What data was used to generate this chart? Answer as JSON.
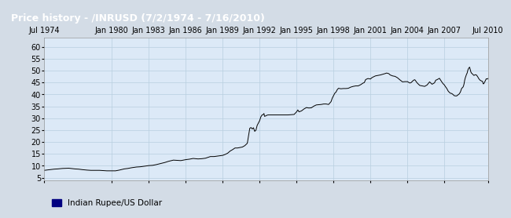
{
  "title": "Price history - /INRUSD (7/2/1974 - 7/16/2010)",
  "title_bg": "#4472b8",
  "title_color": "#ffffff",
  "ylabel_values": [
    5,
    10,
    15,
    20,
    25,
    30,
    35,
    40,
    45,
    50,
    55,
    60
  ],
  "xtick_labels": [
    "Jul 1974",
    "Jan 1980",
    "Jan 1983",
    "Jan 1986",
    "Jan 1989",
    "Jan 1992",
    "Jan 1995",
    "Jan 1998",
    "Jan 2001",
    "Jan 2004",
    "Jan 2007",
    "Jul 2010"
  ],
  "xtick_years": [
    1974.5,
    1980.0,
    1983.0,
    1986.0,
    1989.0,
    1992.0,
    1995.0,
    1998.0,
    2001.0,
    2004.0,
    2007.0,
    2010.54
  ],
  "legend_label": "Indian Rupee/US Dollar",
  "legend_color": "#000080",
  "plot_bg": "#dce9f7",
  "outer_bg": "#d3dce6",
  "line_color": "#000000",
  "grid_color": "#b8cfe0",
  "ylim": [
    4,
    64
  ],
  "xlim": [
    1974.5,
    2010.54
  ],
  "data": [
    [
      1974.5,
      8.1
    ],
    [
      1975.0,
      8.4
    ],
    [
      1975.3,
      8.6
    ],
    [
      1975.6,
      8.7
    ],
    [
      1976.0,
      8.9
    ],
    [
      1976.5,
      9.0
    ],
    [
      1977.0,
      8.7
    ],
    [
      1977.3,
      8.6
    ],
    [
      1977.6,
      8.4
    ],
    [
      1978.0,
      8.2
    ],
    [
      1978.3,
      8.1
    ],
    [
      1978.6,
      8.1
    ],
    [
      1979.0,
      8.1
    ],
    [
      1979.3,
      8.0
    ],
    [
      1979.6,
      7.9
    ],
    [
      1980.0,
      7.9
    ],
    [
      1980.3,
      7.9
    ],
    [
      1980.6,
      8.2
    ],
    [
      1981.0,
      8.7
    ],
    [
      1981.3,
      8.9
    ],
    [
      1981.6,
      9.2
    ],
    [
      1982.0,
      9.5
    ],
    [
      1982.3,
      9.6
    ],
    [
      1982.6,
      9.8
    ],
    [
      1983.0,
      10.1
    ],
    [
      1983.3,
      10.2
    ],
    [
      1983.6,
      10.5
    ],
    [
      1984.0,
      11.0
    ],
    [
      1984.3,
      11.4
    ],
    [
      1984.6,
      11.9
    ],
    [
      1985.0,
      12.4
    ],
    [
      1985.3,
      12.3
    ],
    [
      1985.6,
      12.2
    ],
    [
      1986.0,
      12.6
    ],
    [
      1986.3,
      12.8
    ],
    [
      1986.6,
      13.1
    ],
    [
      1987.0,
      12.9
    ],
    [
      1987.3,
      13.0
    ],
    [
      1987.6,
      13.2
    ],
    [
      1988.0,
      13.9
    ],
    [
      1988.3,
      13.9
    ],
    [
      1988.6,
      14.1
    ],
    [
      1989.0,
      14.4
    ],
    [
      1989.2,
      14.8
    ],
    [
      1989.4,
      15.3
    ],
    [
      1989.6,
      16.2
    ],
    [
      1989.8,
      16.8
    ],
    [
      1990.0,
      17.5
    ],
    [
      1990.2,
      17.5
    ],
    [
      1990.4,
      17.7
    ],
    [
      1990.6,
      17.9
    ],
    [
      1990.8,
      18.5
    ],
    [
      1991.0,
      19.5
    ],
    [
      1991.1,
      22.7
    ],
    [
      1991.15,
      24.5
    ],
    [
      1991.2,
      25.8
    ],
    [
      1991.3,
      26.1
    ],
    [
      1991.4,
      25.5
    ],
    [
      1991.5,
      26.0
    ],
    [
      1991.6,
      24.5
    ],
    [
      1991.7,
      25.0
    ],
    [
      1991.8,
      27.0
    ],
    [
      1991.9,
      28.0
    ],
    [
      1992.0,
      29.0
    ],
    [
      1992.1,
      30.6
    ],
    [
      1992.2,
      31.4
    ],
    [
      1992.3,
      31.6
    ],
    [
      1992.35,
      32.0
    ],
    [
      1992.4,
      30.8
    ],
    [
      1992.5,
      31.0
    ],
    [
      1992.6,
      31.3
    ],
    [
      1992.7,
      31.4
    ],
    [
      1992.8,
      31.4
    ],
    [
      1993.0,
      31.4
    ],
    [
      1993.5,
      31.4
    ],
    [
      1994.0,
      31.4
    ],
    [
      1994.3,
      31.4
    ],
    [
      1994.6,
      31.5
    ],
    [
      1994.8,
      31.6
    ],
    [
      1995.0,
      32.7
    ],
    [
      1995.1,
      33.5
    ],
    [
      1995.2,
      32.7
    ],
    [
      1995.4,
      33.1
    ],
    [
      1995.6,
      33.9
    ],
    [
      1995.8,
      34.5
    ],
    [
      1996.0,
      34.3
    ],
    [
      1996.2,
      34.4
    ],
    [
      1996.4,
      35.1
    ],
    [
      1996.6,
      35.6
    ],
    [
      1996.8,
      35.7
    ],
    [
      1997.0,
      35.8
    ],
    [
      1997.2,
      36.0
    ],
    [
      1997.4,
      36.0
    ],
    [
      1997.6,
      35.8
    ],
    [
      1997.8,
      37.0
    ],
    [
      1997.9,
      38.5
    ],
    [
      1998.0,
      39.5
    ],
    [
      1998.1,
      40.5
    ],
    [
      1998.2,
      41.0
    ],
    [
      1998.3,
      42.0
    ],
    [
      1998.4,
      42.6
    ],
    [
      1998.6,
      42.4
    ],
    [
      1998.8,
      42.5
    ],
    [
      1999.0,
      42.5
    ],
    [
      1999.2,
      42.6
    ],
    [
      1999.4,
      43.1
    ],
    [
      1999.6,
      43.4
    ],
    [
      1999.8,
      43.6
    ],
    [
      2000.0,
      43.6
    ],
    [
      2000.2,
      44.1
    ],
    [
      2000.4,
      44.8
    ],
    [
      2000.5,
      45.0
    ],
    [
      2000.6,
      46.2
    ],
    [
      2000.7,
      46.5
    ],
    [
      2000.8,
      46.7
    ],
    [
      2001.0,
      46.5
    ],
    [
      2001.1,
      47.0
    ],
    [
      2001.2,
      47.3
    ],
    [
      2001.4,
      47.8
    ],
    [
      2001.6,
      48.0
    ],
    [
      2001.8,
      48.2
    ],
    [
      2002.0,
      48.5
    ],
    [
      2002.2,
      48.8
    ],
    [
      2002.3,
      49.0
    ],
    [
      2002.4,
      48.9
    ],
    [
      2002.5,
      48.7
    ],
    [
      2002.6,
      48.2
    ],
    [
      2002.8,
      47.8
    ],
    [
      2003.0,
      47.6
    ],
    [
      2003.2,
      47.0
    ],
    [
      2003.4,
      46.1
    ],
    [
      2003.6,
      45.3
    ],
    [
      2003.8,
      45.4
    ],
    [
      2004.0,
      45.4
    ],
    [
      2004.2,
      44.8
    ],
    [
      2004.3,
      45.0
    ],
    [
      2004.4,
      45.5
    ],
    [
      2004.5,
      46.0
    ],
    [
      2004.6,
      46.2
    ],
    [
      2004.8,
      44.8
    ],
    [
      2005.0,
      43.8
    ],
    [
      2005.2,
      43.6
    ],
    [
      2005.4,
      43.4
    ],
    [
      2005.6,
      44.0
    ],
    [
      2005.8,
      45.3
    ],
    [
      2006.0,
      44.3
    ],
    [
      2006.1,
      44.6
    ],
    [
      2006.2,
      44.9
    ],
    [
      2006.3,
      46.0
    ],
    [
      2006.4,
      46.2
    ],
    [
      2006.5,
      46.5
    ],
    [
      2006.6,
      46.8
    ],
    [
      2006.7,
      46.0
    ],
    [
      2006.8,
      45.2
    ],
    [
      2006.9,
      44.5
    ],
    [
      2007.0,
      44.0
    ],
    [
      2007.1,
      43.2
    ],
    [
      2007.2,
      42.5
    ],
    [
      2007.3,
      41.5
    ],
    [
      2007.4,
      40.9
    ],
    [
      2007.5,
      40.5
    ],
    [
      2007.6,
      40.4
    ],
    [
      2007.7,
      40.0
    ],
    [
      2007.8,
      39.5
    ],
    [
      2007.9,
      39.4
    ],
    [
      2008.0,
      39.4
    ],
    [
      2008.1,
      39.8
    ],
    [
      2008.2,
      40.2
    ],
    [
      2008.3,
      41.0
    ],
    [
      2008.4,
      42.5
    ],
    [
      2008.45,
      42.8
    ],
    [
      2008.5,
      43.0
    ],
    [
      2008.55,
      43.5
    ],
    [
      2008.6,
      44.5
    ],
    [
      2008.65,
      46.0
    ],
    [
      2008.7,
      47.0
    ],
    [
      2008.75,
      47.8
    ],
    [
      2008.8,
      48.5
    ],
    [
      2008.85,
      49.0
    ],
    [
      2008.9,
      50.1
    ],
    [
      2008.95,
      50.8
    ],
    [
      2009.0,
      51.2
    ],
    [
      2009.05,
      51.5
    ],
    [
      2009.1,
      50.5
    ],
    [
      2009.15,
      49.5
    ],
    [
      2009.2,
      49.0
    ],
    [
      2009.25,
      48.8
    ],
    [
      2009.3,
      48.5
    ],
    [
      2009.4,
      48.0
    ],
    [
      2009.5,
      48.3
    ],
    [
      2009.6,
      48.2
    ],
    [
      2009.7,
      47.5
    ],
    [
      2009.8,
      46.6
    ],
    [
      2009.9,
      46.0
    ],
    [
      2010.0,
      45.7
    ],
    [
      2010.1,
      45.5
    ],
    [
      2010.15,
      44.5
    ],
    [
      2010.2,
      44.5
    ],
    [
      2010.3,
      45.5
    ],
    [
      2010.4,
      46.6
    ],
    [
      2010.5,
      46.5
    ],
    [
      2010.54,
      46.7
    ]
  ]
}
